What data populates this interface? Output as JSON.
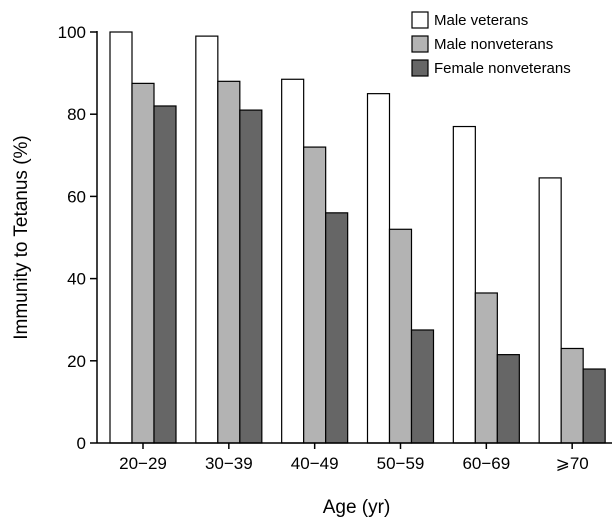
{
  "chart_data": {
    "type": "bar",
    "xlabel": "Age (yr)",
    "ylabel": "Immunity to Tetanus (%)",
    "categories": [
      "20−29",
      "30−39",
      "40−49",
      "50−59",
      "60−69",
      "⩾70"
    ],
    "series": [
      {
        "name": "Male veterans",
        "color": "#ffffff",
        "values": [
          100,
          99,
          88.5,
          85,
          77,
          64.5
        ]
      },
      {
        "name": "Male nonveterans",
        "color": "#b3b3b3",
        "values": [
          87.5,
          88,
          72,
          52,
          36.5,
          23
        ]
      },
      {
        "name": "Female nonveterans",
        "color": "#666666",
        "values": [
          82,
          81,
          56,
          27.5,
          21.5,
          18
        ]
      }
    ],
    "ylim": [
      0,
      100
    ],
    "yticks": [
      0,
      20,
      40,
      60,
      80,
      100
    ],
    "grid": false,
    "legend_position": "top-right"
  }
}
